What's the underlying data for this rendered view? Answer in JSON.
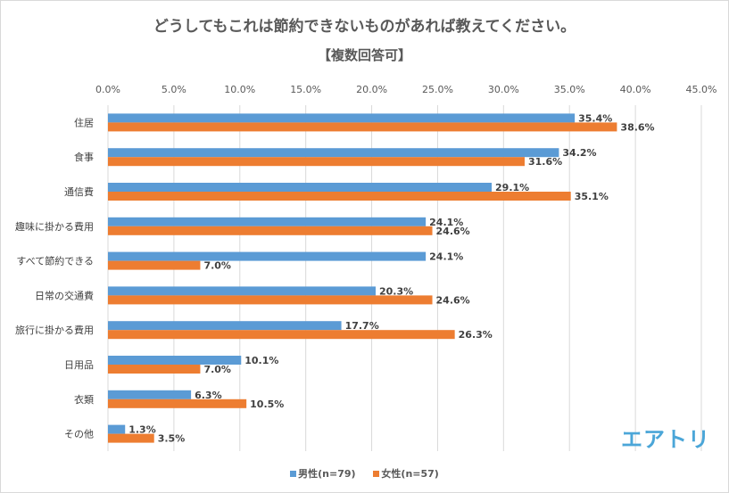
{
  "chart_data": {
    "type": "bar",
    "orientation": "horizontal",
    "title": "どうしてもこれは節約できないものがあれば教えてください。",
    "subtitle": "【複数回答可】",
    "categories": [
      "住居",
      "食事",
      "通信費",
      "趣味に掛かる費用",
      "すべて節約できる",
      "日常の交通費",
      "旅行に掛かる費用",
      "日用品",
      "衣類",
      "その他"
    ],
    "series": [
      {
        "name": "男性(n=79)",
        "color": "#5b9bd5",
        "values": [
          35.4,
          34.2,
          29.1,
          24.1,
          24.1,
          20.3,
          17.7,
          10.1,
          6.3,
          1.3
        ]
      },
      {
        "name": "女性(n=57)",
        "color": "#ed7d31",
        "values": [
          38.6,
          31.6,
          35.1,
          24.6,
          7.0,
          24.6,
          26.3,
          7.0,
          10.5,
          3.5
        ]
      }
    ],
    "xlim": [
      0,
      45
    ],
    "xticks": [
      "0.0%",
      "5.0%",
      "10.0%",
      "15.0%",
      "20.0%",
      "25.0%",
      "30.0%",
      "35.0%",
      "40.0%",
      "45.0%"
    ],
    "grid": true,
    "legend_position": "bottom",
    "value_format": "percent-1-decimal"
  },
  "logo_text": "エアトリ"
}
